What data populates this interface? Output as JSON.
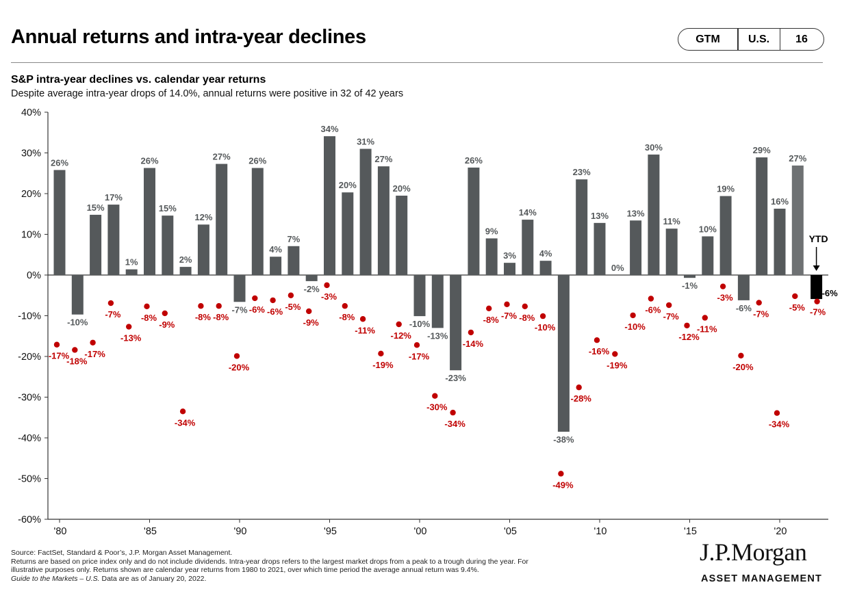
{
  "header": {
    "title": "Annual returns and intra-year declines",
    "pill": [
      "GTM",
      "U.S.",
      "16"
    ]
  },
  "chart_heading": "S&P intra-year declines vs. calendar year returns",
  "chart_note": "Despite average intra-year drops of 14.0%, annual returns were positive in 32 of 42 years",
  "chart_data": {
    "type": "bar",
    "title": "S&P intra-year declines vs. calendar year returns",
    "years": [
      1980,
      1981,
      1982,
      1983,
      1984,
      1985,
      1986,
      1987,
      1988,
      1989,
      1990,
      1991,
      1992,
      1993,
      1994,
      1995,
      1996,
      1997,
      1998,
      1999,
      2000,
      2001,
      2002,
      2003,
      2004,
      2005,
      2006,
      2007,
      2008,
      2009,
      2010,
      2011,
      2012,
      2013,
      2014,
      2015,
      2016,
      2017,
      2018,
      2019,
      2020,
      2021
    ],
    "series": [
      {
        "name": "Calendar year return",
        "values": [
          25.8,
          -9.7,
          14.8,
          17.3,
          1.4,
          26.3,
          14.6,
          2.0,
          12.4,
          27.3,
          -6.6,
          26.3,
          4.5,
          7.1,
          -1.5,
          34.1,
          20.3,
          31.0,
          26.7,
          19.5,
          -10.1,
          -13.0,
          -23.4,
          26.4,
          9.0,
          3.0,
          13.6,
          3.5,
          -38.5,
          23.5,
          12.8,
          0.0,
          13.4,
          29.6,
          11.4,
          -0.7,
          9.5,
          19.4,
          -6.2,
          28.9,
          16.3,
          26.9
        ],
        "labels": [
          "26%",
          "-10%",
          "15%",
          "17%",
          "1%",
          "26%",
          "15%",
          "2%",
          "12%",
          "27%",
          "-7%",
          "26%",
          "4%",
          "7%",
          "-2%",
          "34%",
          "20%",
          "31%",
          "27%",
          "20%",
          "-10%",
          "-13%",
          "-23%",
          "26%",
          "9%",
          "3%",
          "14%",
          "4%",
          "-38%",
          "23%",
          "13%",
          "0%",
          "13%",
          "30%",
          "11%",
          "-1%",
          "10%",
          "19%",
          "-6%",
          "29%",
          "16%",
          "27%"
        ]
      },
      {
        "name": "Intra-year decline",
        "values": [
          -17.1,
          -18.4,
          -16.6,
          -6.9,
          -12.7,
          -7.7,
          -9.4,
          -33.5,
          -7.6,
          -7.6,
          -19.9,
          -5.7,
          -6.2,
          -5.0,
          -8.9,
          -2.5,
          -7.6,
          -10.8,
          -19.3,
          -12.1,
          -17.2,
          -29.7,
          -33.8,
          -14.1,
          -8.2,
          -7.2,
          -7.7,
          -10.1,
          -48.8,
          -27.6,
          -16.0,
          -19.4,
          -9.9,
          -5.8,
          -7.4,
          -12.4,
          -10.5,
          -2.8,
          -19.8,
          -6.8,
          -33.9,
          -5.2
        ],
        "labels": [
          "-17%",
          "-18%",
          "-17%",
          "-7%",
          "-13%",
          "-8%",
          "-9%",
          "-34%",
          "-8%",
          "-8%",
          "-20%",
          "-6%",
          "-6%",
          "-5%",
          "-9%",
          "-3%",
          "-8%",
          "-11%",
          "-19%",
          "-12%",
          "-17%",
          "-30%",
          "-34%",
          "-14%",
          "-8%",
          "-7%",
          "-8%",
          "-10%",
          "-49%",
          "-28%",
          "-16%",
          "-19%",
          "-10%",
          "-6%",
          "-7%",
          "-12%",
          "-11%",
          "-3%",
          "-20%",
          "-7%",
          "-34%",
          "-5%"
        ]
      }
    ],
    "ytd": {
      "label": "YTD",
      "year": 2022,
      "return": -5.9,
      "return_label": "-6%",
      "decline": -6.5,
      "decline_label": "-7%"
    },
    "ylim": [
      -60,
      40
    ],
    "yticks": [
      40,
      30,
      20,
      10,
      0,
      -10,
      -20,
      -30,
      -40,
      -50,
      -60
    ],
    "ytick_labels": [
      "40%",
      "30%",
      "20%",
      "10%",
      "0%",
      "-10%",
      "-20%",
      "-30%",
      "-40%",
      "-50%",
      "-60%"
    ],
    "xticks": [
      1980,
      1985,
      1990,
      1995,
      2000,
      2005,
      2010,
      2015,
      2020
    ],
    "xtick_labels": [
      "'80",
      "'85",
      "'90",
      "'95",
      "'00",
      "'05",
      "'10",
      "'15",
      "'20"
    ],
    "colors": {
      "bar": "#55595b",
      "bar_latest": "#6e7173",
      "ytd_bar": "#000000",
      "decline": "#c00000",
      "axis": "#333333"
    }
  },
  "footer": {
    "source": "Source: FactSet, Standard & Poor’s, J.P. Morgan Asset Management.",
    "note_line1": "Returns are based on price index only and do not include dividends. Intra-year drops refers to the largest market drops from a peak to a trough during the year. For",
    "note_line2": "illustrative purposes only. Returns shown are calendar year returns from 1980 to 2021, over which time period the average annual return was 9.4%.",
    "guide_title": "Guide to the Markets – U.S.",
    "guide_rest": " Data are as of January 20, 2022."
  },
  "brand": {
    "name": "J.P.Morgan",
    "sub": "ASSET MANAGEMENT"
  }
}
